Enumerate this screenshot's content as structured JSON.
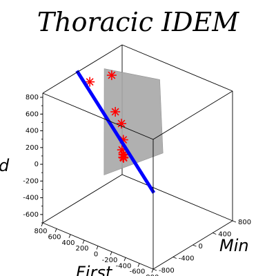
{
  "chart_data": {
    "type": "scatter",
    "title": "Thoracic IDEM",
    "xlabel": "First",
    "ylabel": "Min",
    "zlabel": "d",
    "x_ticks": [
      "800",
      "600",
      "400",
      "200",
      "0",
      "-200",
      "-400",
      "-600",
      "-800"
    ],
    "y_ticks": [
      "-800",
      "-400",
      "0",
      "400",
      "800"
    ],
    "z_ticks": [
      "800",
      "600",
      "400",
      "200",
      "0",
      "-200",
      "-400",
      "-600"
    ],
    "xlim": [
      -800,
      800
    ],
    "ylim": [
      -800,
      800
    ],
    "zlim": [
      -700,
      850
    ],
    "points": [
      {
        "x": 780,
        "y": 120,
        "z": 660
      },
      {
        "x": 520,
        "y": 200,
        "z": 800
      },
      {
        "x": 410,
        "y": 120,
        "z": 430
      },
      {
        "x": 120,
        "y": -160,
        "z": 490
      },
      {
        "x": 100,
        "y": -150,
        "z": 300
      },
      {
        "x": 40,
        "y": -260,
        "z": 240
      },
      {
        "x": 10,
        "y": -280,
        "z": 170
      },
      {
        "x": -10,
        "y": -300,
        "z": 220
      },
      {
        "x": -20,
        "y": -310,
        "z": 190
      },
      {
        "x": -30,
        "y": -330,
        "z": 230
      },
      {
        "x": -40,
        "y": -340,
        "z": 200
      }
    ],
    "fit_line": [
      {
        "x": 880,
        "y": 0,
        "z": 800
      },
      {
        "x": -580,
        "y": -480,
        "z": 20
      }
    ],
    "plane_color": "#a8a8a8",
    "point_color": "#ff0000",
    "line_color": "#0000ff"
  }
}
